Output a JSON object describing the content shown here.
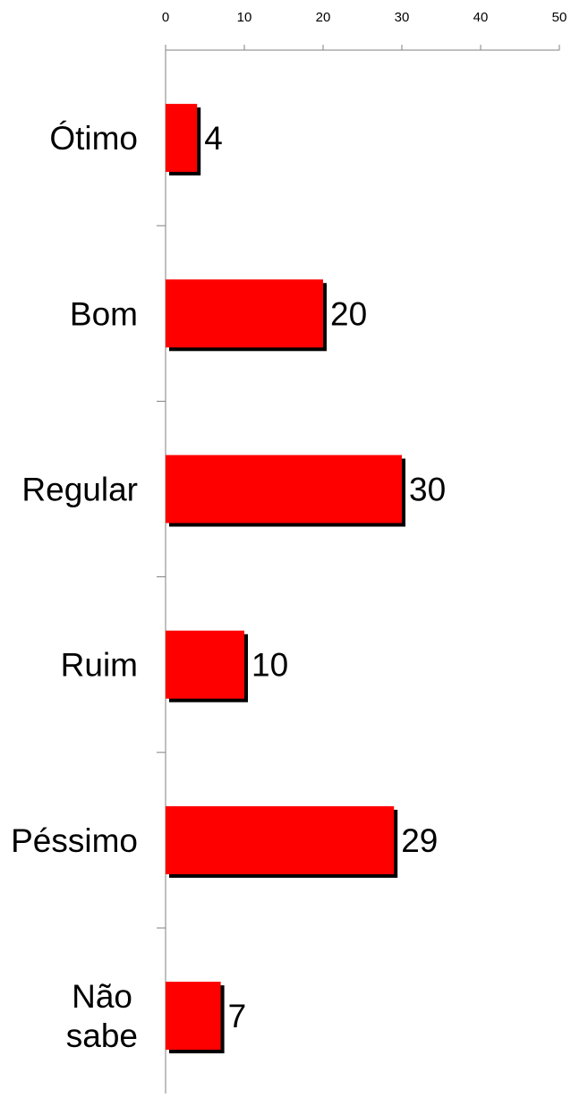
{
  "chart_data": {
    "type": "bar",
    "orientation": "horizontal",
    "categories": [
      "Ótimo",
      "Bom",
      "Regular",
      "Ruim",
      "Péssimo",
      "Não sabe"
    ],
    "values": [
      4,
      20,
      30,
      10,
      29,
      7
    ],
    "data_labels": [
      "4",
      "20",
      "30",
      "10",
      "29",
      "7"
    ],
    "xlim": [
      0,
      50
    ],
    "x_ticks": [
      0,
      10,
      20,
      30,
      40,
      50
    ],
    "x_tick_labels": [
      "0",
      "10",
      "20",
      "30",
      "40",
      "50"
    ],
    "x_axis_position": "top",
    "grid": false,
    "legend": "none",
    "bar_color": "#ff0000",
    "shadow_color": "#000000",
    "title": "",
    "xlabel": "",
    "ylabel": ""
  }
}
